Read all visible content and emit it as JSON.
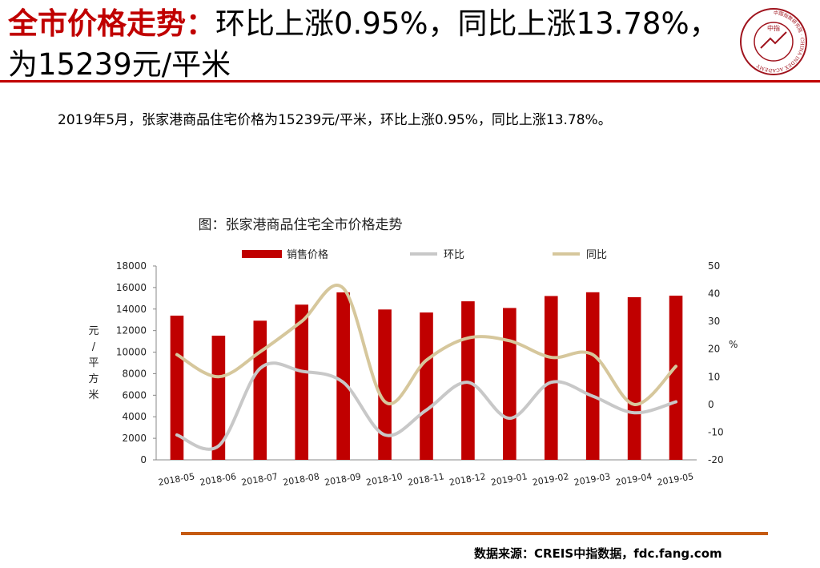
{
  "slide": {
    "title_highlight": "全市价格走势：",
    "title_text": "环比上涨0.95%，同比上涨13.78%，为15239元/平米",
    "summary": "2019年5月，张家港商品住宅价格为15239元/平米，环比上涨0.95%，同比上涨13.78%。",
    "source": "数据来源：CREIS中指数据，fdc.fang.com"
  },
  "logo": {
    "center_text": "中指",
    "ring_text": "中国指数研究院 · CHINA INDEX ACADEMY"
  },
  "colors": {
    "accent": "#c00000",
    "bar": "#c00000",
    "mom_line": "#c8c8c8",
    "yoy_line": "#d6c79c",
    "rule": "#c55a11"
  },
  "chart_data": {
    "type": "bar",
    "title": "图：张家港商品住宅全市价格走势",
    "ylabel": "元/平方米",
    "y2label": "%",
    "categories": [
      "2018-05",
      "2018-06",
      "2018-07",
      "2018-08",
      "2018-09",
      "2018-10",
      "2018-11",
      "2018-12",
      "2019-01",
      "2019-02",
      "2019-03",
      "2019-04",
      "2019-05"
    ],
    "ylim": [
      0,
      18000
    ],
    "y_ticks": [
      "0",
      "2000",
      "4000",
      "6000",
      "8000",
      "10000",
      "12000",
      "14000",
      "16000",
      "18000"
    ],
    "y2lim": [
      -20,
      50
    ],
    "y2_ticks": [
      "-20",
      "-10",
      "0",
      "10",
      "20",
      "30",
      "40",
      "50"
    ],
    "legend_position": "top",
    "grid": false,
    "series": [
      {
        "name": "销售价格",
        "kind": "bar",
        "axis": "left",
        "values": [
          13390,
          11530,
          12920,
          14410,
          15550,
          13960,
          13680,
          14720,
          14100,
          15210,
          15560,
          15100,
          15239
        ]
      },
      {
        "name": "环比",
        "kind": "line",
        "axis": "right",
        "values": [
          -11,
          -15,
          13,
          12,
          8,
          -11,
          -2,
          8,
          -5,
          8,
          3,
          -3,
          0.95
        ]
      },
      {
        "name": "同比",
        "kind": "line",
        "axis": "right",
        "values": [
          18,
          10,
          19,
          30,
          42,
          1,
          16,
          24,
          23,
          17,
          18,
          0,
          13.78
        ]
      }
    ]
  }
}
